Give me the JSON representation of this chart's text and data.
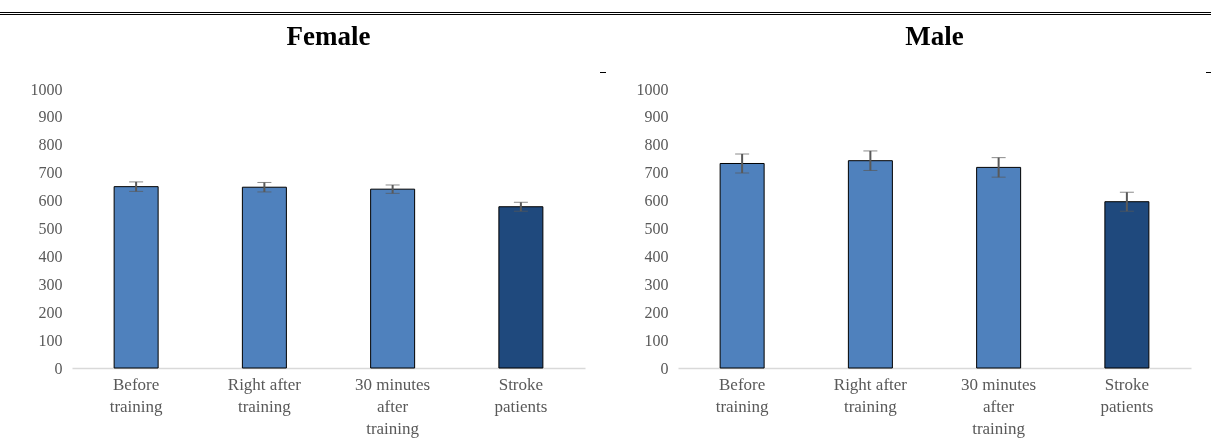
{
  "chart_data": [
    {
      "type": "bar",
      "title": "Female",
      "categories": [
        "Before training",
        "Right after training",
        "30 minutes after training",
        "Stroke patients"
      ],
      "values": [
        650,
        648,
        641,
        578
      ],
      "errors": [
        17,
        17,
        15,
        16
      ],
      "colors": [
        "#4f81bd",
        "#4f81bd",
        "#4f81bd",
        "#1f497d"
      ],
      "ylim": [
        0,
        1000
      ],
      "yticks": [
        0,
        100,
        200,
        300,
        400,
        500,
        600,
        700,
        800,
        900,
        1000
      ],
      "grid": false
    },
    {
      "type": "bar",
      "title": "Male",
      "categories": [
        "Before training",
        "Right after training",
        "30 minutes after training",
        "Stroke patients"
      ],
      "values": [
        733,
        743,
        719,
        596
      ],
      "errors": [
        34,
        35,
        35,
        34
      ],
      "colors": [
        "#4f81bd",
        "#4f81bd",
        "#4f81bd",
        "#1f497d"
      ],
      "ylim": [
        0,
        1000
      ],
      "yticks": [
        0,
        100,
        200,
        300,
        400,
        500,
        600,
        700,
        800,
        900,
        1000
      ],
      "grid": false
    }
  ]
}
